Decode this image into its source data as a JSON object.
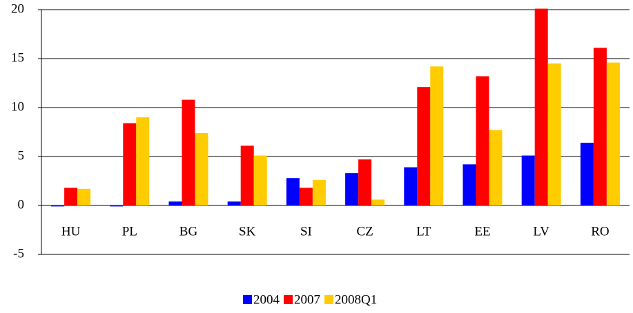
{
  "chart_data": {
    "type": "bar",
    "categories": [
      "HU",
      "PL",
      "BG",
      "SK",
      "SI",
      "CZ",
      "LT",
      "EE",
      "LV",
      "RO"
    ],
    "series": [
      {
        "name": "2004",
        "color": "#0000ff",
        "values": [
          -0.1,
          -0.1,
          0.4,
          0.4,
          2.8,
          3.3,
          3.9,
          4.2,
          5.1,
          6.4
        ]
      },
      {
        "name": "2007",
        "color": "#ff0000",
        "values": [
          1.8,
          8.4,
          10.8,
          6.1,
          1.8,
          4.7,
          12.1,
          13.2,
          20.1,
          16.1
        ]
      },
      {
        "name": "2008Q1",
        "color": "#ffcc00",
        "values": [
          1.7,
          9.0,
          7.4,
          5.1,
          2.6,
          0.6,
          14.2,
          7.7,
          14.5,
          14.6
        ]
      }
    ],
    "ylim": [
      -5,
      20
    ],
    "yticks": [
      -5,
      0,
      5,
      10,
      15,
      20
    ],
    "grid": true,
    "legend": "bottom"
  }
}
